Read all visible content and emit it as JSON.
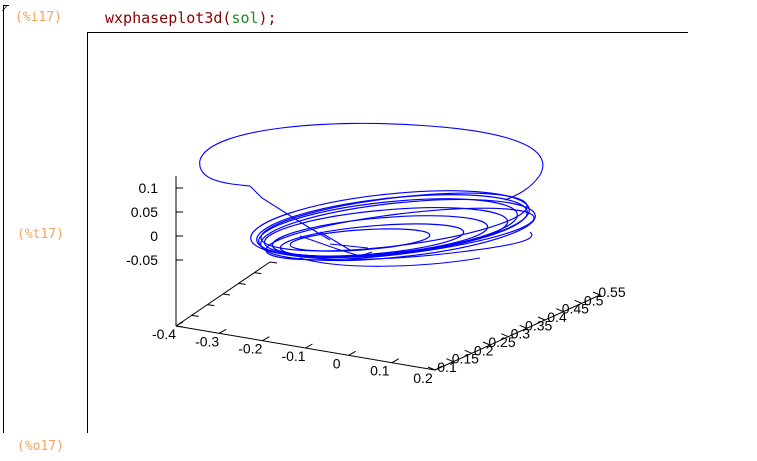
{
  "cell": {
    "input_label": "(%i17)",
    "input_fn": "wxphaseplot3d",
    "input_arg": "sol",
    "input_open": "(",
    "input_close": ");",
    "plot_label": "(%t17)",
    "output_label": "(%o17)"
  },
  "chart_data": {
    "type": "line",
    "title": "",
    "x_ticks": [
      "-0.4",
      "-0.3",
      "-0.2",
      "-0.1",
      "0",
      "0.1",
      "0.2"
    ],
    "y_ticks": [
      "0.1",
      "0.15",
      "0.2",
      "0.25",
      "0.3",
      "0.35",
      "0.4",
      "0.45",
      "0.5",
      "0.55"
    ],
    "z_ticks": [
      "0.1",
      "0.05",
      "0",
      "-0.05"
    ],
    "series_color": "#0000ff",
    "xlim": [
      -0.4,
      0.2
    ],
    "ylim": [
      0.1,
      0.55
    ],
    "zlim": [
      -0.05,
      0.1
    ]
  },
  "colors": {
    "label": "#f4a460",
    "function": "#8b0000",
    "argument": "#228b22",
    "curve": "#0000ff"
  }
}
